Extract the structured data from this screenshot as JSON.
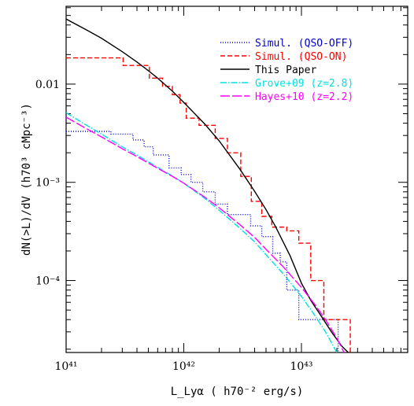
{
  "chart_data": {
    "type": "line",
    "xlabel": "L_Lyα ( h70⁻² erg/s)",
    "ylabel": "dN(>L)/dV (h70³ cMpc⁻³)",
    "xscale": "log",
    "yscale": "log",
    "xlim": [
      1e+41,
      8e+43
    ],
    "ylim": [
      1.85e-05,
      0.062
    ],
    "x_ticks": [
      {
        "value": 1e+41,
        "label": "10⁴¹"
      },
      {
        "value": 1e+42,
        "label": "10⁴²"
      },
      {
        "value": 1e+43,
        "label": "10⁴³"
      }
    ],
    "y_ticks": [
      {
        "value": 0.01,
        "label": "0.01"
      },
      {
        "value": 0.001,
        "label": "10⁻³"
      },
      {
        "value": 0.0001,
        "label": "10⁻⁴"
      }
    ],
    "series": [
      {
        "name": "Simul. (QSO-OFF)",
        "color": "#0000cc",
        "dash": "1,2",
        "kind": "step",
        "points": [
          [
            1e+41,
            0.0033
          ],
          [
            2.4e+41,
            0.0033
          ],
          [
            2.4e+41,
            0.0031
          ],
          [
            3.7e+41,
            0.0031
          ],
          [
            3.7e+41,
            0.0027
          ],
          [
            4.6e+41,
            0.0027
          ],
          [
            4.6e+41,
            0.0023
          ],
          [
            5.5e+41,
            0.0023
          ],
          [
            5.5e+41,
            0.0019
          ],
          [
            7.5e+41,
            0.0019
          ],
          [
            7.5e+41,
            0.0014
          ],
          [
            9.5e+41,
            0.0014
          ],
          [
            9.5e+41,
            0.0012
          ],
          [
            1.15e+42,
            0.0012
          ],
          [
            1.15e+42,
            0.001
          ],
          [
            1.45e+42,
            0.001
          ],
          [
            1.45e+42,
            0.0008
          ],
          [
            1.85e+42,
            0.0008
          ],
          [
            1.85e+42,
            0.0006
          ],
          [
            2.35e+42,
            0.0006
          ],
          [
            2.35e+42,
            0.00047
          ],
          [
            3.7e+42,
            0.00047
          ],
          [
            3.7e+42,
            0.00036
          ],
          [
            4.6e+42,
            0.00036
          ],
          [
            4.6e+42,
            0.00028
          ],
          [
            5.7e+42,
            0.00028
          ],
          [
            5.7e+42,
            0.00019
          ],
          [
            6.6e+42,
            0.00019
          ],
          [
            6.6e+42,
            0.000155
          ],
          [
            7.5e+42,
            0.000155
          ],
          [
            7.5e+42,
            8e-05
          ],
          [
            9.5e+42,
            8e-05
          ],
          [
            9.5e+42,
            4e-05
          ],
          [
            2.05e+43,
            4e-05
          ],
          [
            2.05e+43,
            1.85e-05
          ]
        ]
      },
      {
        "name": "Simul. (QSO-ON)",
        "color": "#ff0000",
        "dash": "6,3",
        "kind": "step",
        "points": [
          [
            1e+41,
            0.0185
          ],
          [
            3.05e+41,
            0.0185
          ],
          [
            3.05e+41,
            0.0155
          ],
          [
            5.1e+41,
            0.0155
          ],
          [
            5.1e+41,
            0.0115
          ],
          [
            6.6e+41,
            0.0115
          ],
          [
            6.6e+41,
            0.0095
          ],
          [
            8e+41,
            0.0095
          ],
          [
            8e+41,
            0.0078
          ],
          [
            9.3e+41,
            0.0078
          ],
          [
            9.3e+41,
            0.0064
          ],
          [
            1.05e+42,
            0.0064
          ],
          [
            1.05e+42,
            0.0045
          ],
          [
            1.35e+42,
            0.0045
          ],
          [
            1.35e+42,
            0.0038
          ],
          [
            1.85e+42,
            0.0038
          ],
          [
            1.85e+42,
            0.0028
          ],
          [
            2.35e+42,
            0.0028
          ],
          [
            2.35e+42,
            0.002
          ],
          [
            3.05e+42,
            0.002
          ],
          [
            3.05e+42,
            0.00115
          ],
          [
            3.75e+42,
            0.00115
          ],
          [
            3.75e+42,
            0.00064
          ],
          [
            4.6e+42,
            0.00064
          ],
          [
            4.6e+42,
            0.00045
          ],
          [
            5.6e+42,
            0.00045
          ],
          [
            5.6e+42,
            0.00035
          ],
          [
            7.5e+42,
            0.00035
          ],
          [
            7.5e+42,
            0.00032
          ],
          [
            9.5e+42,
            0.00032
          ],
          [
            9.5e+42,
            0.00024
          ],
          [
            1.2e+43,
            0.00024
          ],
          [
            1.2e+43,
            0.0001
          ],
          [
            1.55e+43,
            0.0001
          ],
          [
            1.55e+43,
            4e-05
          ],
          [
            2.6e+43,
            4e-05
          ],
          [
            2.6e+43,
            1.85e-05
          ]
        ]
      },
      {
        "name": "This Paper",
        "color": "#000000",
        "dash": "",
        "kind": "line",
        "points": [
          [
            1e+41,
            0.046
          ],
          [
            1.5e+41,
            0.0355
          ],
          [
            2e+41,
            0.0293
          ],
          [
            3e+41,
            0.0214
          ],
          [
            4e+41,
            0.0168
          ],
          [
            5e+41,
            0.0137
          ],
          [
            6e+41,
            0.0115
          ],
          [
            8e+41,
            0.00848
          ],
          [
            1e+42,
            0.00652
          ],
          [
            1.5e+42,
            0.00395
          ],
          [
            2e+42,
            0.00264
          ],
          [
            3e+42,
            0.00136
          ],
          [
            4e+42,
            0.000811
          ],
          [
            5e+42,
            0.000527
          ],
          [
            6e+42,
            0.000357
          ],
          [
            8e+42,
            0.000179
          ],
          [
            1e+43,
            9.4e-05
          ],
          [
            1.2e+43,
            6.3e-05
          ],
          [
            1.5e+43,
            4.2e-05
          ],
          [
            1.8e+43,
            3e-05
          ],
          [
            2.2e+43,
            2.15e-05
          ],
          [
            2.5e+43,
            1.85e-05
          ]
        ]
      },
      {
        "name": "Grove+09 (z=2.8)",
        "color": "#00e0e0",
        "dash": "8,2,1.5,2",
        "kind": "line",
        "points": [
          [
            1e+41,
            0.0051
          ],
          [
            1.5e+41,
            0.0038
          ],
          [
            2e+41,
            0.0031
          ],
          [
            3e+41,
            0.0023
          ],
          [
            4e+41,
            0.0019
          ],
          [
            6e+41,
            0.00142
          ],
          [
            8e+41,
            0.00116
          ],
          [
            1e+42,
            0.00098
          ],
          [
            1.5e+42,
            0.00069
          ],
          [
            2e+42,
            0.00052
          ],
          [
            3e+42,
            0.00034
          ],
          [
            4e+42,
            0.000248
          ],
          [
            5e+42,
            0.000183
          ],
          [
            7e+42,
            0.000117
          ],
          [
            1e+43,
            6.9e-05
          ],
          [
            1.3e+43,
            4.4e-05
          ],
          [
            1.6e+43,
            3e-05
          ],
          [
            2e+43,
            1.85e-05
          ]
        ]
      },
      {
        "name": "Hayes+10 (z=2.2)",
        "color": "#ff00ff",
        "dash": "12,3",
        "kind": "line",
        "points": [
          [
            1e+41,
            0.0046
          ],
          [
            1.5e+41,
            0.0035
          ],
          [
            2e+41,
            0.0029
          ],
          [
            3e+41,
            0.0022
          ],
          [
            4e+41,
            0.00183
          ],
          [
            6e+41,
            0.00139
          ],
          [
            8e+41,
            0.00115
          ],
          [
            1e+42,
            0.00098
          ],
          [
            1.5e+42,
            0.00071
          ],
          [
            2e+42,
            0.00055
          ],
          [
            3e+42,
            0.00037
          ],
          [
            4e+42,
            0.000275
          ],
          [
            5e+42,
            0.000208
          ],
          [
            7e+42,
            0.000138
          ],
          [
            1e+43,
            8.5e-05
          ],
          [
            1.3e+43,
            5.7e-05
          ],
          [
            1.6e+43,
            4e-05
          ],
          [
            2e+43,
            2.6e-05
          ],
          [
            2.3e+43,
            1.85e-05
          ]
        ]
      }
    ],
    "legend": {
      "position": "top-right",
      "entries": [
        {
          "label": "Simul. (QSO-OFF)",
          "color": "#0000cc",
          "dash": "1,2"
        },
        {
          "label": "Simul. (QSO-ON)",
          "color": "#ff0000",
          "dash": "6,3"
        },
        {
          "label": "This Paper",
          "color": "#000000",
          "dash": ""
        },
        {
          "label": "Grove+09 (z=2.8)",
          "color": "#00e0e0",
          "dash": "8,2,1.5,2"
        },
        {
          "label": "Hayes+10 (z=2.2)",
          "color": "#ff00ff",
          "dash": "12,3"
        }
      ]
    }
  }
}
